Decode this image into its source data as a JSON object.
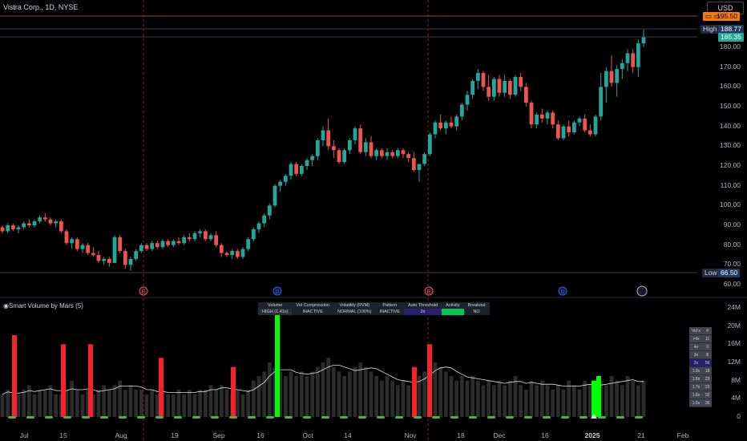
{
  "header": {
    "title": "Vistra Corp., 1D, NYSE",
    "currency": "USD"
  },
  "price_tags": {
    "current_orange": "195.50",
    "high_label": "High",
    "high_value": "188.77",
    "last_value": "185.35",
    "low_label": "Low",
    "low_value": "66.50"
  },
  "price_axis": [
    "180.00",
    "170.00",
    "160.00",
    "150.00",
    "140.00",
    "130.00",
    "120.00",
    "110.00",
    "100.00",
    "90.00",
    "80.00",
    "70.00",
    "60.00"
  ],
  "volume_axis": [
    "24M",
    "20M",
    "16M",
    "12M",
    "8M",
    "4M",
    "0"
  ],
  "time_axis": [
    "Jul",
    "15",
    "Aug",
    "19",
    "Sep",
    "16",
    "Oct",
    "14",
    "Nov",
    "18",
    "Dec",
    "16",
    "2025",
    "21",
    "Feb"
  ],
  "event_markers": [
    "E",
    "D",
    "E",
    "D"
  ],
  "indicator": {
    "title": "Smart Volume by Mars (5)"
  },
  "volume_table": {
    "headers": [
      "Volume",
      "Vol Compression",
      "Volatility (RVM)",
      "Pattern",
      "Auto Threshold",
      "Activity",
      "Breakout"
    ],
    "row": [
      "HIGH (1.41x)",
      "INACTIVE",
      "NORMAL (100%)",
      "INACTIVE",
      "2x",
      "HIGH",
      "NO"
    ]
  },
  "level_table": {
    "rows": [
      [
        "Vol x",
        "#"
      ],
      [
        ">4x",
        "11"
      ],
      [
        "4x",
        "0"
      ],
      [
        "3x",
        "8"
      ],
      [
        "2x",
        "56"
      ],
      [
        "1.9x",
        "18"
      ],
      [
        "1.8x",
        "23"
      ],
      [
        "1.7x",
        "23"
      ],
      [
        "1.6x",
        "32"
      ],
      [
        "1.5x",
        "36"
      ]
    ]
  },
  "colors": {
    "up": "#26a69a",
    "down": "#ef5350",
    "spike": "#f7232b",
    "hot": "#00ff00",
    "accent": "#2962ff",
    "orange": "#f57c00"
  },
  "chart_data": {
    "type": "candlestick",
    "ylim": [
      57,
      198
    ],
    "candles": [
      [
        89,
        90,
        86,
        87
      ],
      [
        87,
        91,
        86,
        90
      ],
      [
        90,
        91,
        87,
        88
      ],
      [
        88,
        90,
        86,
        89
      ],
      [
        89,
        92,
        88,
        91
      ],
      [
        91,
        93,
        89,
        90
      ],
      [
        90,
        93,
        89,
        92
      ],
      [
        92,
        95,
        91,
        94
      ],
      [
        94,
        96,
        92,
        93
      ],
      [
        93,
        94,
        90,
        91
      ],
      [
        91,
        93,
        89,
        92
      ],
      [
        92,
        93,
        86,
        87
      ],
      [
        87,
        88,
        80,
        81
      ],
      [
        81,
        84,
        78,
        83
      ],
      [
        83,
        84,
        77,
        78
      ],
      [
        78,
        81,
        76,
        80
      ],
      [
        80,
        81,
        75,
        76
      ],
      [
        76,
        79,
        74,
        75
      ],
      [
        75,
        77,
        71,
        72
      ],
      [
        72,
        74,
        70,
        73
      ],
      [
        73,
        74,
        69,
        71
      ],
      [
        71,
        85,
        71,
        84
      ],
      [
        84,
        85,
        76,
        77
      ],
      [
        77,
        78,
        68,
        70
      ],
      [
        70,
        74,
        67,
        73
      ],
      [
        73,
        78,
        72,
        77
      ],
      [
        77,
        81,
        76,
        80
      ],
      [
        80,
        81,
        77,
        78
      ],
      [
        78,
        82,
        77,
        81
      ],
      [
        81,
        82,
        78,
        79
      ],
      [
        79,
        83,
        78,
        82
      ],
      [
        82,
        83,
        79,
        80
      ],
      [
        80,
        83,
        79,
        82
      ],
      [
        82,
        84,
        80,
        81
      ],
      [
        81,
        85,
        80,
        84
      ],
      [
        84,
        86,
        82,
        83
      ],
      [
        83,
        87,
        82,
        86
      ],
      [
        86,
        88,
        84,
        87
      ],
      [
        87,
        88,
        82,
        83
      ],
      [
        83,
        86,
        82,
        85
      ],
      [
        85,
        87,
        79,
        80
      ],
      [
        80,
        81,
        74,
        76
      ],
      [
        76,
        77,
        74,
        75
      ],
      [
        75,
        78,
        73,
        77
      ],
      [
        77,
        78,
        73,
        74
      ],
      [
        74,
        79,
        73,
        78
      ],
      [
        78,
        84,
        77,
        83
      ],
      [
        83,
        89,
        82,
        88
      ],
      [
        88,
        92,
        86,
        91
      ],
      [
        91,
        96,
        89,
        95
      ],
      [
        95,
        101,
        93,
        100
      ],
      [
        100,
        111,
        99,
        110
      ],
      [
        110,
        113,
        107,
        112
      ],
      [
        112,
        116,
        110,
        115
      ],
      [
        115,
        122,
        113,
        121
      ],
      [
        121,
        122,
        115,
        116
      ],
      [
        116,
        121,
        115,
        120
      ],
      [
        120,
        124,
        118,
        123
      ],
      [
        123,
        126,
        120,
        125
      ],
      [
        125,
        134,
        123,
        133
      ],
      [
        133,
        140,
        130,
        138
      ],
      [
        138,
        144,
        128,
        130
      ],
      [
        130,
        133,
        124,
        128
      ],
      [
        128,
        129,
        121,
        122
      ],
      [
        122,
        129,
        121,
        128
      ],
      [
        128,
        134,
        126,
        133
      ],
      [
        133,
        140,
        131,
        139
      ],
      [
        139,
        141,
        126,
        127
      ],
      [
        127,
        134,
        125,
        132
      ],
      [
        132,
        135,
        124,
        125
      ],
      [
        125,
        129,
        123,
        128
      ],
      [
        128,
        129,
        124,
        125
      ],
      [
        125,
        129,
        123,
        127
      ],
      [
        127,
        128,
        124,
        125
      ],
      [
        125,
        129,
        124,
        128
      ],
      [
        128,
        129,
        124,
        126
      ],
      [
        126,
        127,
        122,
        124
      ],
      [
        124,
        127,
        117,
        118
      ],
      [
        118,
        120,
        112,
        121
      ],
      [
        121,
        127,
        120,
        126
      ],
      [
        126,
        137,
        125,
        136
      ],
      [
        136,
        143,
        134,
        142
      ],
      [
        142,
        146,
        138,
        139
      ],
      [
        139,
        143,
        136,
        142
      ],
      [
        142,
        145,
        139,
        140
      ],
      [
        140,
        146,
        138,
        145
      ],
      [
        145,
        152,
        143,
        151
      ],
      [
        151,
        158,
        148,
        156
      ],
      [
        156,
        164,
        154,
        163
      ],
      [
        163,
        169,
        159,
        167
      ],
      [
        167,
        168,
        158,
        160
      ],
      [
        160,
        166,
        153,
        155
      ],
      [
        155,
        165,
        153,
        164
      ],
      [
        164,
        166,
        155,
        157
      ],
      [
        157,
        166,
        155,
        163
      ],
      [
        163,
        164,
        154,
        156
      ],
      [
        156,
        166,
        155,
        165
      ],
      [
        165,
        167,
        158,
        160
      ],
      [
        160,
        162,
        150,
        152
      ],
      [
        152,
        153,
        139,
        141
      ],
      [
        141,
        147,
        139,
        146
      ],
      [
        146,
        149,
        142,
        144
      ],
      [
        144,
        148,
        141,
        147
      ],
      [
        147,
        148,
        139,
        141
      ],
      [
        141,
        143,
        133,
        134
      ],
      [
        134,
        141,
        133,
        140
      ],
      [
        140,
        143,
        135,
        137
      ],
      [
        137,
        143,
        136,
        142
      ],
      [
        142,
        145,
        140,
        144
      ],
      [
        144,
        146,
        137,
        138
      ],
      [
        138,
        141,
        135,
        136
      ],
      [
        136,
        146,
        135,
        145
      ],
      [
        145,
        167,
        143,
        160
      ],
      [
        160,
        170,
        152,
        168
      ],
      [
        168,
        176,
        160,
        162
      ],
      [
        162,
        171,
        155,
        169
      ],
      [
        169,
        174,
        164,
        172
      ],
      [
        172,
        179,
        168,
        177
      ],
      [
        177,
        179,
        167,
        170
      ],
      [
        170,
        184,
        165,
        182
      ],
      [
        182,
        189,
        180,
        185
      ]
    ],
    "volume": [
      5,
      6,
      5,
      5,
      6,
      7,
      5,
      6,
      6,
      7,
      5,
      5,
      6,
      8,
      6,
      5,
      6,
      5,
      6,
      7,
      6,
      7,
      8,
      6,
      7,
      6,
      6,
      5,
      6,
      5,
      6,
      5,
      5,
      6,
      5,
      6,
      5,
      6,
      6,
      7,
      6,
      7,
      6,
      5,
      6,
      5,
      6,
      8,
      9,
      10,
      12,
      11,
      10,
      9,
      10,
      9,
      10,
      9,
      10,
      11,
      12,
      13,
      11,
      10,
      9,
      10,
      11,
      12,
      11,
      10,
      9,
      8,
      9,
      8,
      7,
      8,
      7,
      8,
      9,
      10,
      12,
      12,
      11,
      10,
      9,
      8,
      9,
      8,
      9,
      8,
      7,
      8,
      7,
      8,
      7,
      8,
      9,
      7,
      6,
      8,
      7,
      8,
      7,
      6,
      7,
      6,
      8,
      7,
      6,
      8,
      7,
      6,
      8,
      7,
      9,
      8,
      7,
      9,
      8,
      7,
      8
    ],
    "spikes": [
      [
        18,
        18
      ],
      [
        79,
        16
      ],
      [
        113,
        16
      ],
      [
        201,
        13
      ],
      [
        291,
        11
      ],
      [
        346,
        24
      ],
      [
        517,
        11
      ],
      [
        536,
        16
      ],
      [
        741,
        8
      ],
      [
        747,
        9
      ]
    ]
  }
}
